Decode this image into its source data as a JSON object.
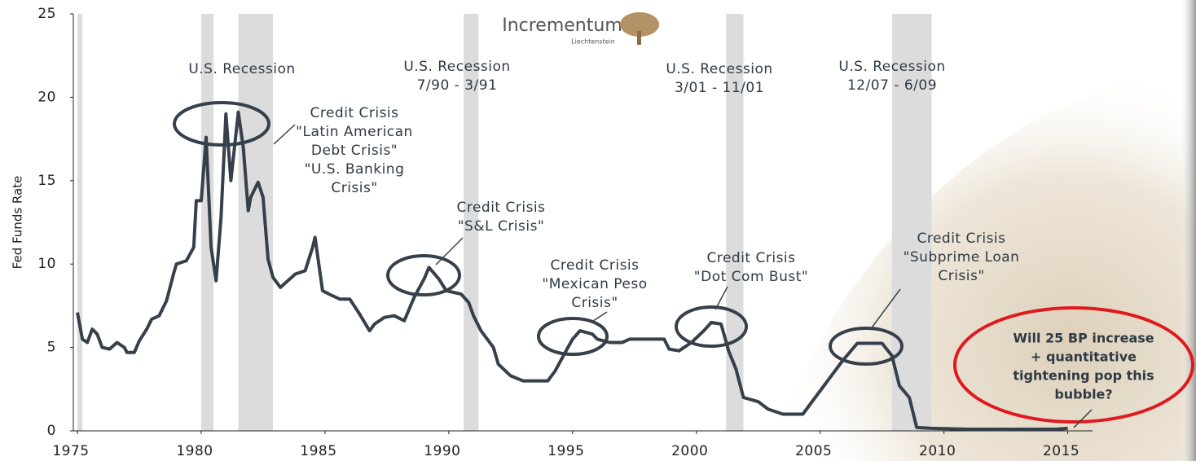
{
  "chart_data": {
    "type": "line",
    "y_label": "Fed Funds Rate",
    "logo": {
      "name": "Incrementum",
      "place": "Liechtenstein"
    },
    "color": "#36404a",
    "recession_color": "#dcdcdc",
    "xlim": [
      1975,
      2016
    ],
    "ylim": [
      0,
      25
    ],
    "xticks": [
      1975,
      1980,
      1985,
      1990,
      1995,
      2000,
      2005,
      2010,
      2015
    ],
    "yticks": [
      0,
      5,
      10,
      15,
      20,
      25
    ],
    "recessions": [
      {
        "start": 1975.0,
        "end": 1975.2
      },
      {
        "start": 1980.0,
        "end": 1980.5
      },
      {
        "start": 1981.5,
        "end": 1982.9
      },
      {
        "start": 1990.6,
        "end": 1991.2
      },
      {
        "start": 2001.2,
        "end": 2001.9
      },
      {
        "start": 2007.9,
        "end": 2009.5
      }
    ],
    "annotations": [
      [
        "U.S. Recession"
      ],
      [
        "U.S. Recession",
        "7/90 - 3/91"
      ],
      [
        "U.S. Recession",
        "3/01 - 11/01"
      ],
      [
        "U.S. Recession",
        "12/07 - 6/09"
      ],
      [
        "Credit Crisis",
        "\"Latin American",
        "Debt Crisis\"",
        "\"U.S. Banking",
        "Crisis\""
      ],
      [
        "Credit Crisis",
        "\"S&L Crisis\""
      ],
      [
        "Credit Crisis",
        "\"Mexican Peso",
        "Crisis\""
      ],
      [
        "Credit Crisis",
        "\"Dot Com Bust\""
      ],
      [
        "Credit Crisis",
        "\"Subprime Loan",
        "Crisis\""
      ],
      [
        "Will 25 BP increase",
        "+ quantitative",
        "tightening pop this",
        "bubble?"
      ]
    ],
    "x": [
      1975.0,
      1975.2,
      1975.4,
      1975.6,
      1975.8,
      1976.0,
      1976.3,
      1976.6,
      1976.9,
      1977.0,
      1977.3,
      1977.5,
      1977.8,
      1978.0,
      1978.3,
      1978.6,
      1978.9,
      1979.0,
      1979.4,
      1979.7,
      1979.8,
      1980.0,
      1980.2,
      1980.4,
      1980.6,
      1980.8,
      1981.0,
      1981.2,
      1981.5,
      1981.7,
      1981.9,
      1982.0,
      1982.3,
      1982.5,
      1982.7,
      1982.9,
      1983.2,
      1983.5,
      1983.8,
      1984.2,
      1984.5,
      1984.6,
      1984.9,
      1985.3,
      1985.6,
      1986.0,
      1986.4,
      1986.8,
      1987.0,
      1987.4,
      1987.8,
      1988.2,
      1988.6,
      1989.0,
      1989.2,
      1989.6,
      1989.9,
      1990.5,
      1990.8,
      1991.0,
      1991.3,
      1991.8,
      1992.0,
      1992.5,
      1993.0,
      1993.5,
      1994.0,
      1994.3,
      1994.7,
      1995.0,
      1995.3,
      1995.8,
      1996.0,
      1996.5,
      1997.0,
      1997.3,
      1998.0,
      1998.7,
      1998.9,
      1999.3,
      1999.8,
      2000.3,
      2000.6,
      2001.0,
      2001.3,
      2001.6,
      2001.9,
      2002.5,
      2002.9,
      2003.5,
      2004.3,
      2004.8,
      2005.3,
      2005.9,
      2006.5,
      2007.5,
      2007.9,
      2008.2,
      2008.6,
      2008.9,
      2009.5,
      2011.0,
      2013.0,
      2014.5,
      2015.0
    ],
    "values": [
      7.1,
      5.5,
      5.3,
      6.1,
      5.8,
      5.0,
      4.9,
      5.3,
      5.0,
      4.7,
      4.7,
      5.4,
      6.1,
      6.7,
      6.9,
      7.8,
      9.5,
      10.0,
      10.2,
      11.0,
      13.8,
      13.8,
      17.6,
      11.0,
      9.0,
      12.8,
      19.0,
      15.0,
      19.1,
      17.0,
      13.2,
      14.0,
      14.9,
      14.0,
      10.3,
      9.2,
      8.6,
      9.0,
      9.4,
      9.6,
      11.0,
      11.6,
      8.4,
      8.1,
      7.9,
      7.9,
      7.0,
      6.0,
      6.4,
      6.8,
      6.9,
      6.6,
      8.0,
      9.1,
      9.8,
      9.1,
      8.4,
      8.2,
      7.7,
      6.9,
      6.0,
      5.0,
      4.0,
      3.3,
      3.0,
      3.0,
      3.0,
      3.6,
      4.7,
      5.5,
      6.0,
      5.8,
      5.5,
      5.3,
      5.3,
      5.5,
      5.5,
      5.5,
      4.9,
      4.8,
      5.3,
      6.0,
      6.5,
      6.4,
      4.8,
      3.7,
      2.0,
      1.75,
      1.3,
      1.0,
      1.0,
      2.0,
      3.0,
      4.2,
      5.25,
      5.25,
      4.5,
      2.7,
      2.0,
      0.2,
      0.15,
      0.1,
      0.1,
      0.1,
      0.15
    ]
  }
}
